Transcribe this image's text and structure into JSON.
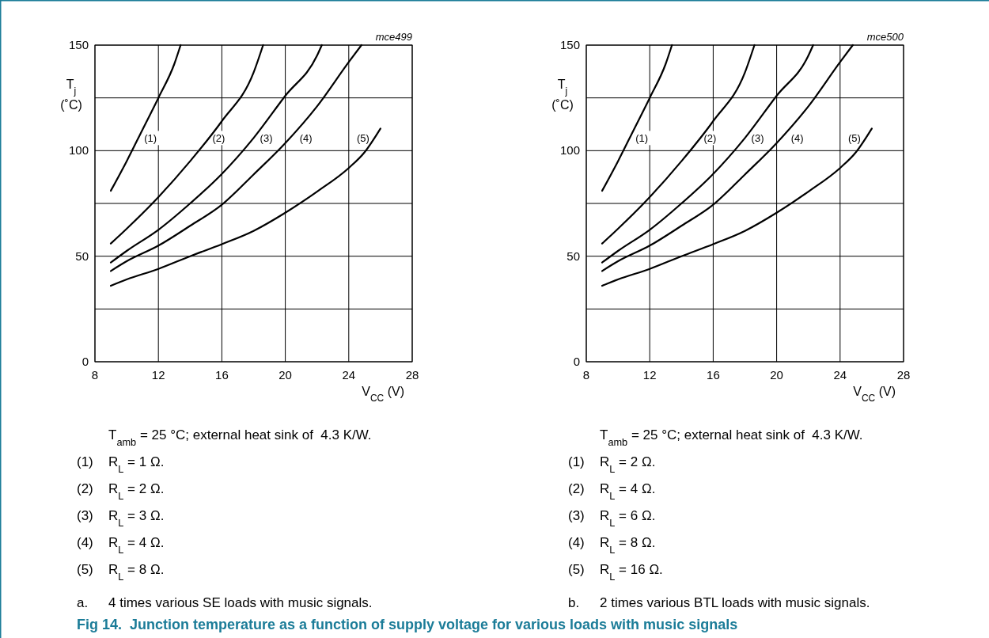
{
  "chart_data": [
    {
      "type": "line",
      "title": "Fig 14.  Junction temperature as a function of supply voltage for various loads with music signals",
      "xlabel": "V$_{CC}$ (V)",
      "ylabel": "T$_{j}$ (˚C)",
      "xlim": [
        8,
        28
      ],
      "xticks": [
        8,
        12,
        16,
        20,
        24,
        28
      ],
      "ylim": [
        0,
        150
      ],
      "yticks": [
        0,
        {
          "value": 25,
          "label": null
        },
        50,
        {
          "value": 75,
          "label": null
        },
        100,
        {
          "value": 125,
          "label": null
        },
        150
      ],
      "grid": true,
      "marker": "none",
      "line_style": "solid",
      "series": [
        {
          "color": "#000000",
          "x": [
            9,
            10,
            11,
            12,
            13,
            13.4
          ],
          "values": [
            81,
            95,
            110,
            125,
            141,
            150
          ]
        },
        {
          "color": "#000000",
          "x": [
            9,
            10,
            12,
            14,
            16,
            18,
            18.6
          ],
          "values": [
            56,
            63,
            78,
            95,
            114,
            137,
            150
          ]
        },
        {
          "color": "#000000",
          "x": [
            9,
            10,
            12,
            14,
            16,
            18,
            20,
            22,
            22.3
          ],
          "values": [
            47,
            52.5,
            62.5,
            75,
            89,
            106,
            126,
            145,
            150
          ]
        },
        {
          "color": "#000000",
          "x": [
            9,
            10,
            12,
            14,
            16,
            18,
            20,
            22,
            24,
            24.8
          ],
          "values": [
            43,
            47.6,
            55,
            64.4,
            74.4,
            88.7,
            103.6,
            121,
            142,
            150
          ]
        },
        {
          "color": "#000000",
          "x": [
            9,
            10,
            12,
            14,
            16,
            18,
            20,
            22,
            24,
            25,
            26
          ],
          "values": [
            36,
            39,
            44,
            50,
            55.7,
            62,
            70.6,
            80.6,
            91.8,
            99.3,
            110.5
          ]
        }
      ],
      "annotations": [
        "mce499",
        {
          "text": "(1)",
          "x": 11.5,
          "y": 106
        },
        {
          "text": "(2)",
          "x": 15.8,
          "y": 106
        },
        {
          "text": "(3)",
          "x": 18.8,
          "y": 106
        },
        {
          "text": "(4)",
          "x": 21.3,
          "y": 106
        },
        {
          "text": "(5)",
          "x": 24.9,
          "y": 106
        },
        "T$_{amb}$ = 25 °C; external heat sink of  4.3 K/W.",
        "(1)  R$_{L}$ = 1 Ω.",
        "(2)  R$_{L}$ = 2 Ω.",
        "(3)  R$_{L}$ = 3 Ω.",
        "(4)  R$_{L}$ = 4 Ω.",
        "(5)  R$_{L}$ = 8 Ω.",
        "a.  4 times various SE loads with music signals."
      ]
    },
    {
      "type": "line",
      "xlabel": "V$_{CC}$ (V)",
      "ylabel": "T$_{j}$ (˚C)",
      "xlim": [
        8,
        28
      ],
      "xticks": [
        8,
        12,
        16,
        20,
        24,
        28
      ],
      "ylim": [
        0,
        150
      ],
      "yticks": [
        0,
        {
          "value": 25,
          "label": null
        },
        50,
        {
          "value": 75,
          "label": null
        },
        100,
        {
          "value": 125,
          "label": null
        },
        150
      ],
      "grid": true,
      "marker": "none",
      "line_style": "solid",
      "series": [
        {
          "color": "#000000",
          "x": [
            9,
            10,
            11,
            12,
            13,
            13.4
          ],
          "values": [
            81,
            95,
            110,
            125,
            141,
            150
          ]
        },
        {
          "color": "#000000",
          "x": [
            9,
            10,
            12,
            14,
            16,
            18,
            18.6
          ],
          "values": [
            56,
            63,
            78,
            95,
            114,
            137,
            150
          ]
        },
        {
          "color": "#000000",
          "x": [
            9,
            10,
            12,
            14,
            16,
            18,
            20,
            22,
            22.3
          ],
          "values": [
            47,
            52.5,
            62.5,
            75,
            89,
            106,
            126,
            145,
            150
          ]
        },
        {
          "color": "#000000",
          "x": [
            9,
            10,
            12,
            14,
            16,
            18,
            20,
            22,
            24,
            24.8
          ],
          "values": [
            43,
            47.6,
            55,
            64.4,
            74.4,
            88.7,
            103.6,
            121,
            142,
            150
          ]
        },
        {
          "color": "#000000",
          "x": [
            9,
            10,
            12,
            14,
            16,
            18,
            20,
            22,
            24,
            25,
            26
          ],
          "values": [
            36,
            39,
            44,
            50,
            55.7,
            62,
            70.6,
            80.6,
            91.8,
            99.3,
            110.5
          ]
        }
      ],
      "annotations": [
        "mce500",
        {
          "text": "(1)",
          "x": 11.5,
          "y": 106
        },
        {
          "text": "(2)",
          "x": 15.8,
          "y": 106
        },
        {
          "text": "(3)",
          "x": 18.8,
          "y": 106
        },
        {
          "text": "(4)",
          "x": 21.3,
          "y": 106
        },
        {
          "text": "(5)",
          "x": 24.9,
          "y": 106
        },
        "T$_{amb}$ = 25 °C; external heat sink of  4.3 K/W.",
        "(1)  R$_{L}$ = 2 Ω.",
        "(2)  R$_{L}$ = 4 Ω.",
        "(3)  R$_{L}$ = 6 Ω.",
        "(4)  R$_{L}$ = 8 Ω.",
        "(5)  R$_{L}$ = 16 Ω.",
        "b.  2 times various BTL loads with music signals."
      ]
    }
  ]
}
